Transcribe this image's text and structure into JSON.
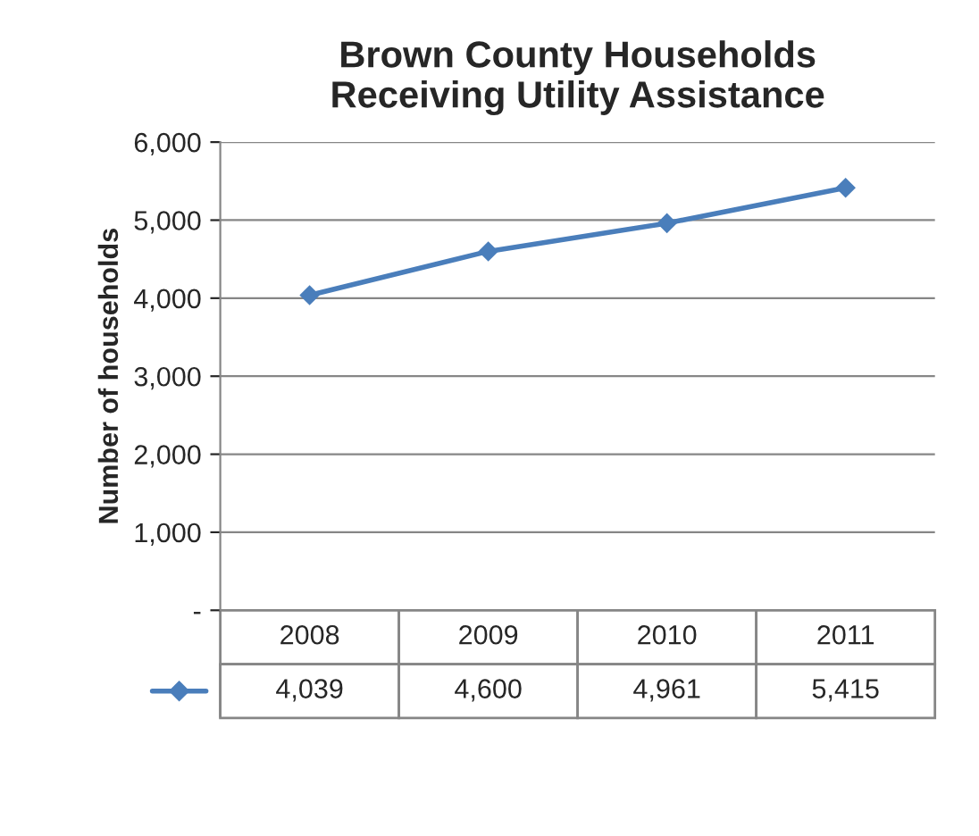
{
  "chart_data": {
    "type": "line",
    "title": "Brown County Households\nReceiving Utility Assistance",
    "ylabel": "Number of households",
    "categories": [
      "2008",
      "2009",
      "2010",
      "2011"
    ],
    "series": [
      {
        "color": "#4a7ebb",
        "values": [
          4039,
          4600,
          4961,
          5415
        ],
        "value_labels": [
          "4,039",
          "4,600",
          "4,961",
          "5,415"
        ]
      }
    ],
    "ylim": [
      0,
      6000
    ],
    "yticks": [
      {
        "value": 0,
        "label": "-"
      },
      {
        "value": 1000,
        "label": "1,000"
      },
      {
        "value": 2000,
        "label": "2,000"
      },
      {
        "value": 3000,
        "label": "3,000"
      },
      {
        "value": 4000,
        "label": "4,000"
      },
      {
        "value": 5000,
        "label": "5,000"
      },
      {
        "value": 6000,
        "label": "6,000"
      }
    ],
    "grid": "y",
    "marker": "diamond",
    "line_style": "solid"
  }
}
